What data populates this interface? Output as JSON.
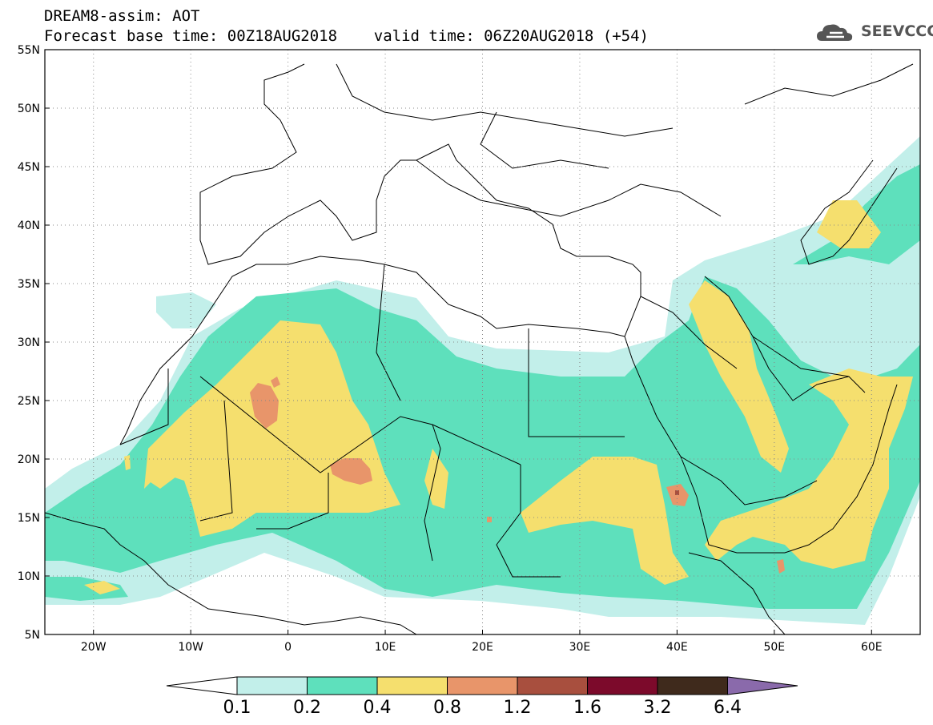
{
  "title": {
    "line1": "DREAM8-assim: AOT",
    "line2": "Forecast base time: 00Z18AUG2018    valid time: 06Z20AUG2018 (+54)"
  },
  "logo": {
    "text": "SEEVCCC",
    "icon": "cloud-icon"
  },
  "map": {
    "lon_range": [
      -25,
      65
    ],
    "lat_range": [
      5,
      55
    ],
    "lat_ticks": [
      {
        "value": 55,
        "label": "55N"
      },
      {
        "value": 50,
        "label": "50N"
      },
      {
        "value": 45,
        "label": "45N"
      },
      {
        "value": 40,
        "label": "40N"
      },
      {
        "value": 35,
        "label": "35N"
      },
      {
        "value": 30,
        "label": "30N"
      },
      {
        "value": 25,
        "label": "25N"
      },
      {
        "value": 20,
        "label": "20N"
      },
      {
        "value": 15,
        "label": "15N"
      },
      {
        "value": 10,
        "label": "10N"
      },
      {
        "value": 5,
        "label": "5N"
      }
    ],
    "lon_ticks": [
      {
        "value": -20,
        "label": "20W"
      },
      {
        "value": -10,
        "label": "10W"
      },
      {
        "value": 0,
        "label": "0"
      },
      {
        "value": 10,
        "label": "10E"
      },
      {
        "value": 20,
        "label": "20E"
      },
      {
        "value": 30,
        "label": "30E"
      },
      {
        "value": 40,
        "label": "40E"
      },
      {
        "value": 50,
        "label": "50E"
      },
      {
        "value": 60,
        "label": "60E"
      }
    ],
    "grid": "dotted"
  },
  "colorbar": {
    "colors": [
      "#c2efea",
      "#5ee0bc",
      "#f5df6e",
      "#e8956a",
      "#a84f3e",
      "#7c0a2b",
      "#3f2a1c",
      "#8a6aab"
    ],
    "labels": [
      "0.1",
      "0.2",
      "0.4",
      "0.8",
      "1.2",
      "1.6",
      "3.2",
      "6.4"
    ]
  }
}
